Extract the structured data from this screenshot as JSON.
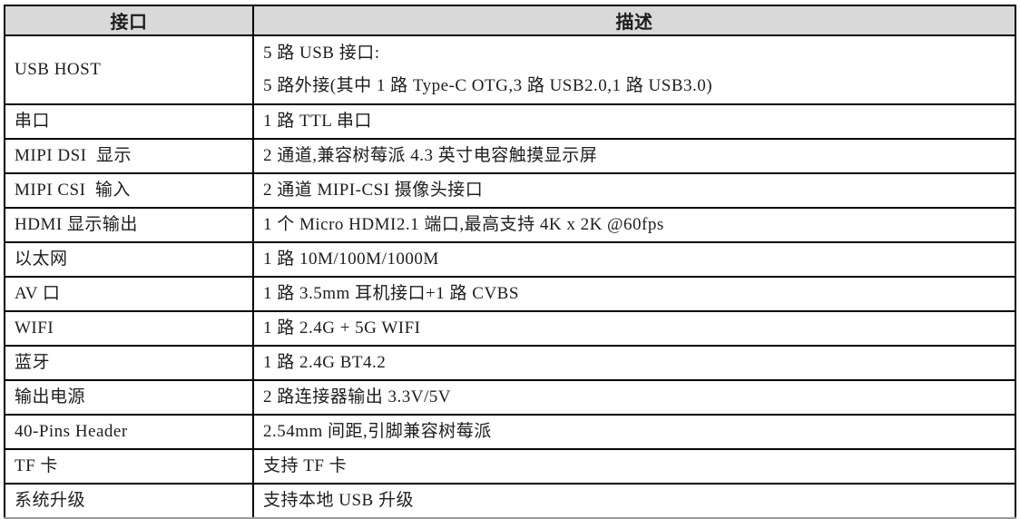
{
  "table": {
    "columns": [
      {
        "label": "接口"
      },
      {
        "label": "描述"
      }
    ],
    "rows": [
      {
        "interface": "USB HOST",
        "description": "5 路 USB 接口:\n5 路外接(其中 1 路 Type-C OTG,3 路 USB2.0,1 路 USB3.0)"
      },
      {
        "interface": "串口",
        "description": "1 路 TTL 串口"
      },
      {
        "interface": "MIPI DSI  显示",
        "description": "2 通道,兼容树莓派 4.3 英寸电容触摸显示屏"
      },
      {
        "interface": "MIPI CSI  输入",
        "description": "2 通道 MIPI-CSI 摄像头接口"
      },
      {
        "interface": "HDMI 显示输出",
        "description": "1 个 Micro HDMI2.1 端口,最高支持 4K x 2K @60fps"
      },
      {
        "interface": "以太网",
        "description": "1 路 10M/100M/1000M"
      },
      {
        "interface": "AV 口",
        "description": "1 路 3.5mm 耳机接口+1 路 CVBS"
      },
      {
        "interface": "WIFI",
        "description": "1 路 2.4G + 5G WIFI"
      },
      {
        "interface": "蓝牙",
        "description": "1 路 2.4G BT4.2"
      },
      {
        "interface": "输出电源",
        "description": "2 路连接器输出 3.3V/5V"
      },
      {
        "interface": "40-Pins Header",
        "description": "2.54mm 间距,引脚兼容树莓派"
      },
      {
        "interface": "TF 卡",
        "description": "支持 TF 卡"
      },
      {
        "interface": "系统升级",
        "description": "支持本地 USB 升级"
      }
    ]
  },
  "colors": {
    "header_bg": "#d9d9d9",
    "border": "#000000",
    "text": "#1d1d1d"
  }
}
